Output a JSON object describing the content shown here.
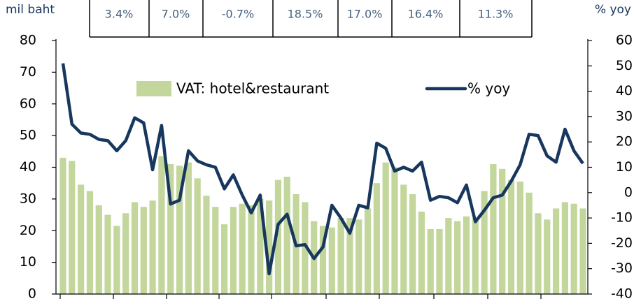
{
  "table": {
    "cells": [
      "3.4%",
      "7.0%",
      "-0.7%",
      "18.5%",
      "17.0%",
      "16.4%",
      "11.3%"
    ]
  },
  "chart_data": {
    "type": "bar_line",
    "ylabel": "mil baht",
    "y2label": "% yoy",
    "ylim": [
      0,
      80
    ],
    "yticks": [
      0,
      10,
      20,
      30,
      40,
      50,
      60,
      70,
      80
    ],
    "y2lim": [
      -40,
      60
    ],
    "y2ticks": [
      -40,
      -30,
      -20,
      -10,
      0,
      10,
      20,
      30,
      40,
      50,
      60
    ],
    "series": [
      {
        "name": "VAT: hotel&restaurant",
        "type": "bar",
        "color": "#c3d69b",
        "values": [
          43,
          42,
          34.5,
          32.5,
          28,
          25,
          21.5,
          25.5,
          29,
          27.5,
          29.5,
          43.5,
          41,
          40.5,
          41.5,
          36.5,
          31,
          27.5,
          22,
          27.5,
          28.5,
          28,
          30,
          29.5,
          36,
          37,
          31.5,
          29,
          23,
          21.5,
          21,
          24,
          24,
          23.5,
          27,
          35,
          41.5,
          40,
          34.5,
          31.5,
          26,
          20.5,
          20.5,
          24,
          23,
          24.5,
          24,
          32.5,
          41,
          39.5,
          36,
          35.5,
          32,
          25.5,
          23.5,
          27,
          29,
          28.5,
          27
        ]
      },
      {
        "name": "% yoy",
        "type": "line",
        "axis": "y2",
        "color": "#17375e",
        "values": [
          51,
          27,
          23.5,
          23,
          21,
          20.5,
          16.5,
          20.5,
          29.5,
          27.5,
          9,
          26.5,
          -4.5,
          -3,
          16.5,
          12.5,
          11,
          10,
          1.5,
          7,
          -1,
          -8,
          -1,
          -32,
          -12.5,
          -8.5,
          -21,
          -20.5,
          -26,
          -21.5,
          -5,
          -10,
          -16,
          -5,
          -6,
          19.5,
          17.5,
          8.5,
          10,
          8.5,
          12,
          -3,
          -1.5,
          -2,
          -4,
          3,
          -11.5,
          -7,
          -2,
          -1,
          4.5,
          11,
          23,
          22.5,
          14.5,
          12,
          25,
          16.5,
          11.5
        ]
      }
    ]
  }
}
